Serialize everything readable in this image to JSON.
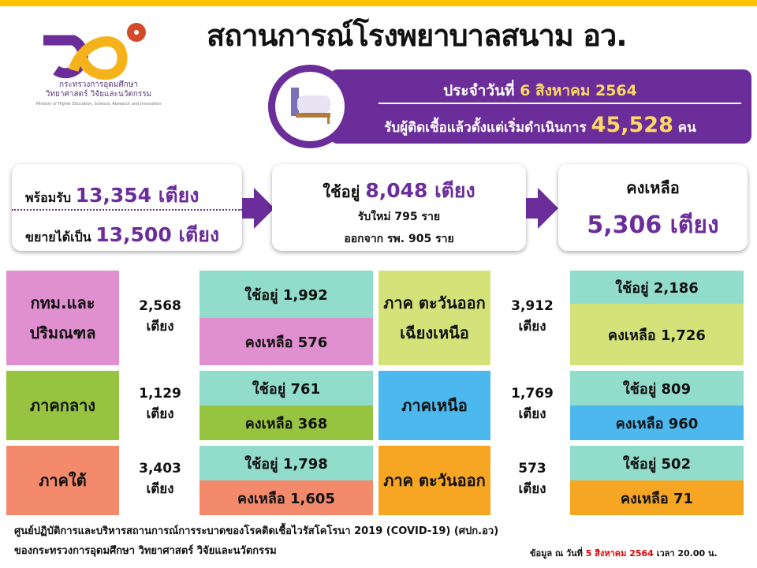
{
  "header": {
    "title": "สถานการณ์โรงพยาบาลสนาม อว.",
    "logo": {
      "text_th_1": "กระทรวงการอุดมศึกษา",
      "text_th_2": "วิทยาศาสตร์ วิจัยและนวัตกรรม",
      "text_en": "Ministry of Higher Education, Science, Research and Innovation"
    },
    "date_prefix": "ประจำวันที่",
    "date": "6 สิงหาคม 2564",
    "total_prefix": "รับผู้ติดเชื้อแล้วตั้งแต่เริ่มดำเนินการ",
    "total": "45,528",
    "total_unit": "คน"
  },
  "summary": {
    "ready_label": "พร้อมรับ",
    "ready_value": "13,354 เตียง",
    "expand_label": "ขยายได้เป็น",
    "expand_value": "13,500 เตียง",
    "used_label": "ใช้อยู่",
    "used_value": "8,048 เตียง",
    "new_line": "รับใหม่  795  ราย",
    "discharged_line": "ออกจาก รพ. 905 ราย",
    "remaining_label": "คงเหลือ",
    "remaining_value": "5,306 เตียง"
  },
  "regions": [
    {
      "name": "กทม.และ ปริมณฑล",
      "beds": "2,568",
      "unit": "เตียง",
      "used": "ใช้อยู่  1,992",
      "remain": "คงเหลือ  576",
      "color": "#e08fcf"
    },
    {
      "name": "ภาคกลาง",
      "beds": "1,129",
      "unit": "เตียง",
      "used": "ใช้อยู่  761",
      "remain": "คงเหลือ  368",
      "color": "#96c441"
    },
    {
      "name": "ภาคใต้",
      "beds": "3,403",
      "unit": "เตียง",
      "used": "ใช้อยู่  1,798",
      "remain": "คงเหลือ 1,605",
      "color": "#f28a6b"
    },
    {
      "name": "ภาค ตะวันออก เฉียงเหนือ",
      "beds": "3,912",
      "unit": "เตียง",
      "used": "ใช้อยู่   2,186",
      "remain": "คงเหลือ  1,726",
      "color": "#d4e27a"
    },
    {
      "name": "ภาคเหนือ",
      "beds": "1,769",
      "unit": "เตียง",
      "used": "ใช้อยู่  809",
      "remain": "คงเหลือ  960",
      "color": "#4db8ee"
    },
    {
      "name": "ภาค ตะวันออก",
      "beds": "573",
      "unit": "เตียง",
      "used": "ใช้อยู่  502",
      "remain": "คงเหลือ  71",
      "color": "#f6a623"
    }
  ],
  "footer": {
    "line1": "ศูนย์ปฏิบัติการและบริหารสถานการณ์การระบาดของโรคติดเชื้อไวรัสโคโรนา  2019 (COVID-19) (ศปก.อว)",
    "line2": "ของกระทรวงการอุดมศึกษา  วิทยาศาสตร์ วิจัยและนวัตกรรม",
    "asof_prefix": "ข้อมูล ณ วันที่",
    "asof_date": "5 สิงหาคม 2564",
    "asof_time": "เวลา  20.00 น."
  }
}
